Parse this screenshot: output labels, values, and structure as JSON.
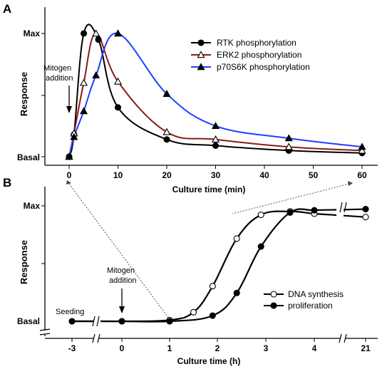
{
  "chart_data": [
    {
      "type": "line",
      "panel_label": "A",
      "xlabel": "Culture time (min)",
      "ylabel": "Response",
      "ytick_labels": [
        "Basal",
        "Max"
      ],
      "xticks": [
        0,
        10,
        20,
        30,
        40,
        50,
        60
      ],
      "xlim": [
        -5,
        63
      ],
      "ylim": [
        0,
        1
      ],
      "annotation": {
        "lines": [
          "Mitogen",
          "addition"
        ],
        "x": 0
      },
      "legend_position": "top-right",
      "series": [
        {
          "name": "RTK phosphorylation",
          "color": "#000000",
          "marker": "filled-circle",
          "x": [
            0,
            1,
            3,
            6,
            10,
            20,
            30,
            45,
            60
          ],
          "y": [
            0.0,
            0.18,
            1.0,
            0.95,
            0.4,
            0.14,
            0.09,
            0.05,
            0.03
          ]
        },
        {
          "name": "ERK2 phosphorylation",
          "color": "#8b1a1a",
          "marker": "open-triangle",
          "x": [
            0,
            1,
            3,
            5.5,
            10,
            20,
            30,
            45,
            60
          ],
          "y": [
            0.0,
            0.19,
            0.6,
            1.0,
            0.61,
            0.2,
            0.14,
            0.08,
            0.05
          ]
        },
        {
          "name": "p70S6K phosphorylation",
          "color": "#1f3fff",
          "marker": "filled-triangle",
          "x": [
            0,
            1,
            3,
            5.5,
            10,
            20,
            30,
            45,
            60
          ],
          "y": [
            0.0,
            0.16,
            0.37,
            0.66,
            1.0,
            0.51,
            0.25,
            0.15,
            0.08
          ]
        }
      ]
    },
    {
      "type": "line",
      "panel_label": "B",
      "xlabel": "Culture time (h)",
      "ylabel": "Response",
      "ytick_labels": [
        "Basal",
        "Max"
      ],
      "categories": [
        "-3",
        "0",
        "1",
        "2",
        "3",
        "4",
        "21"
      ],
      "axis_breaks": [
        "between -3 and 0",
        "between 4 and 21"
      ],
      "ylim": [
        0,
        1
      ],
      "annotations": [
        {
          "text": "Seeding",
          "x": -3
        },
        {
          "lines": [
            "Mitogen",
            "addition"
          ],
          "x": 0
        }
      ],
      "legend_position": "lower-right",
      "series": [
        {
          "name": "DNA synthesis",
          "color": "#000000",
          "marker": "open-circle",
          "x": [
            -3,
            0,
            1,
            1.5,
            1.9,
            2.4,
            2.9,
            3.5,
            4.0,
            21
          ],
          "y": [
            0.0,
            0.0,
            0.01,
            0.08,
            0.31,
            0.73,
            0.94,
            0.97,
            0.95,
            0.92
          ]
        },
        {
          "name": "proliferation",
          "color": "#000000",
          "marker": "filled-circle",
          "x": [
            -3,
            0,
            1,
            1.9,
            2.4,
            2.9,
            3.5,
            4.0,
            21
          ],
          "y": [
            0.0,
            0.0,
            0.0,
            0.05,
            0.25,
            0.66,
            0.96,
            0.98,
            0.99
          ]
        }
      ]
    }
  ]
}
